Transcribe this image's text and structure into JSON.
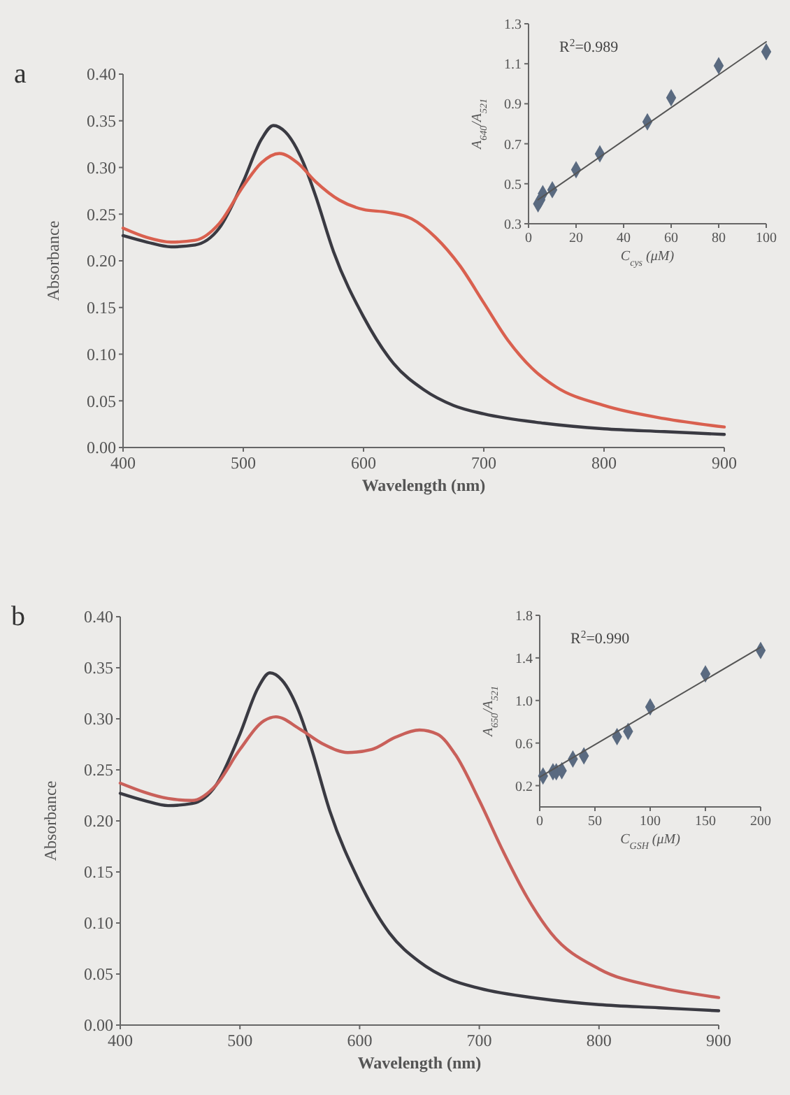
{
  "chart_data": [
    {
      "type": "line",
      "title": "a",
      "xlabel": "Wavelength (nm)",
      "ylabel": "Absorbance",
      "xlim": [
        400,
        900
      ],
      "xticks": [
        400,
        500,
        600,
        700,
        800,
        900
      ],
      "ylim": [
        0,
        0.4
      ],
      "yticks": [
        {
          "value": 0,
          "label": "0.00"
        },
        0.05,
        {
          "value": 0.1,
          "label": "0.10"
        },
        0.15,
        {
          "value": 0.2,
          "label": "0.20"
        },
        0.25,
        {
          "value": 0.3,
          "label": "0.30"
        },
        0.35,
        {
          "value": 0.4,
          "label": "0.40"
        }
      ],
      "grid": false,
      "line_style": "solid",
      "series": [
        {
          "color": "#3a3a42",
          "x": [
            400,
            420,
            440,
            460,
            480,
            500,
            515,
            525,
            535,
            550,
            560,
            575,
            600,
            625,
            650,
            675,
            700,
            750,
            800,
            850,
            900
          ],
          "values": [
            0.227,
            0.22,
            0.215,
            0.217,
            0.235,
            0.285,
            0.33,
            0.345,
            0.338,
            0.305,
            0.27,
            0.21,
            0.14,
            0.09,
            0.062,
            0.045,
            0.036,
            0.026,
            0.02,
            0.017,
            0.014
          ]
        },
        {
          "color": "#d9604f",
          "x": [
            400,
            420,
            440,
            460,
            480,
            500,
            515,
            530,
            545,
            560,
            580,
            600,
            620,
            640,
            660,
            680,
            700,
            720,
            740,
            760,
            800,
            850,
            900
          ],
          "values": [
            0.235,
            0.225,
            0.22,
            0.222,
            0.24,
            0.28,
            0.305,
            0.315,
            0.305,
            0.285,
            0.265,
            0.255,
            0.252,
            0.245,
            0.225,
            0.195,
            0.155,
            0.115,
            0.085,
            0.065,
            0.045,
            0.031,
            0.022
          ]
        }
      ]
    },
    {
      "type": "scatter",
      "xlabel": "C$_{cys}$ (μM)",
      "ylabel": "A$_{640}$/A$_{521}$",
      "annotations": [
        "R$^{2}$=0.989"
      ],
      "xlim": [
        0,
        100
      ],
      "xticks": [
        0,
        20,
        40,
        60,
        80,
        100
      ],
      "ylim": [
        0.3,
        1.3
      ],
      "yticks": [
        0.3,
        0.5,
        0.7,
        0.9,
        1.1,
        1.3
      ],
      "grid": false,
      "series": [
        {
          "color": "#5a6a80",
          "marker": "diamond",
          "x": [
            4,
            5,
            6,
            10,
            20,
            30,
            50,
            60,
            80,
            100
          ],
          "values": [
            0.4,
            0.42,
            0.45,
            0.47,
            0.57,
            0.65,
            0.81,
            0.93,
            1.09,
            1.16
          ]
        },
        {
          "type": "line",
          "color": "#555555",
          "x": [
            4,
            100
          ],
          "values": [
            0.42,
            1.21
          ]
        }
      ]
    },
    {
      "type": "line",
      "title": "b",
      "xlabel": "Wavelength (nm)",
      "ylabel": "Absorbance",
      "xlim": [
        400,
        900
      ],
      "xticks": [
        400,
        500,
        600,
        700,
        800,
        900
      ],
      "ylim": [
        0,
        0.4
      ],
      "yticks": [
        {
          "value": 0,
          "label": "0.00"
        },
        0.05,
        {
          "value": 0.1,
          "label": "0.10"
        },
        0.15,
        {
          "value": 0.2,
          "label": "0.20"
        },
        0.25,
        {
          "value": 0.3,
          "label": "0.30"
        },
        0.35,
        {
          "value": 0.4,
          "label": "0.40"
        }
      ],
      "grid": false,
      "line_style": "solid",
      "series": [
        {
          "color": "#3a3a42",
          "x": [
            400,
            420,
            440,
            460,
            480,
            500,
            515,
            525,
            535,
            550,
            560,
            575,
            600,
            625,
            650,
            675,
            700,
            750,
            800,
            850,
            900
          ],
          "values": [
            0.227,
            0.22,
            0.215,
            0.217,
            0.235,
            0.285,
            0.33,
            0.345,
            0.338,
            0.305,
            0.27,
            0.21,
            0.14,
            0.09,
            0.062,
            0.045,
            0.036,
            0.026,
            0.02,
            0.017,
            0.014
          ]
        },
        {
          "color": "#c9605a",
          "x": [
            400,
            440,
            460,
            480,
            500,
            520,
            530,
            550,
            570,
            590,
            610,
            630,
            650,
            665,
            680,
            700,
            720,
            740,
            760,
            800,
            850,
            900
          ],
          "values": [
            0.237,
            0.222,
            0.22,
            0.235,
            0.27,
            0.298,
            0.302,
            0.29,
            0.275,
            0.267,
            0.27,
            0.282,
            0.289,
            0.285,
            0.265,
            0.22,
            0.17,
            0.125,
            0.09,
            0.055,
            0.037,
            0.027
          ]
        }
      ]
    },
    {
      "type": "scatter",
      "xlabel": "C$_{GSH}$ (μM)",
      "ylabel": "A$_{650}$/A$_{521}$",
      "annotations": [
        "R$^{2}$=0.990"
      ],
      "xlim": [
        0,
        200
      ],
      "xticks": [
        0,
        50,
        100,
        150,
        200
      ],
      "ylim": [
        0,
        1.8
      ],
      "yticks": [
        0.2,
        0.6,
        {
          "value": 1,
          "label": "1.0"
        },
        1.4,
        1.8
      ],
      "grid": false,
      "series": [
        {
          "color": "#5a6a80",
          "marker": "diamond",
          "x": [
            3,
            12,
            15,
            20,
            30,
            40,
            70,
            80,
            100,
            150,
            200
          ],
          "values": [
            0.29,
            0.33,
            0.33,
            0.34,
            0.45,
            0.48,
            0.66,
            0.71,
            0.94,
            1.25,
            1.47
          ]
        },
        {
          "type": "line",
          "color": "#555555",
          "x": [
            0,
            200
          ],
          "values": [
            0.28,
            1.5
          ]
        }
      ]
    }
  ]
}
